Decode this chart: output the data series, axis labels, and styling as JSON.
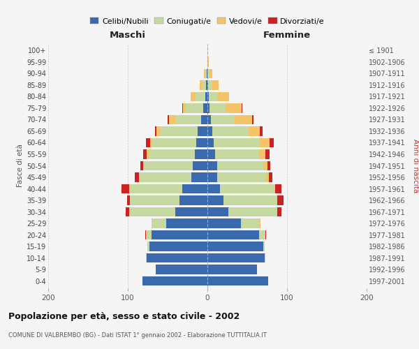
{
  "age_groups": [
    "0-4",
    "5-9",
    "10-14",
    "15-19",
    "20-24",
    "25-29",
    "30-34",
    "35-39",
    "40-44",
    "45-49",
    "50-54",
    "55-59",
    "60-64",
    "65-69",
    "70-74",
    "75-79",
    "80-84",
    "85-89",
    "90-94",
    "95-99",
    "100+"
  ],
  "birth_years": [
    "1997-2001",
    "1992-1996",
    "1987-1991",
    "1982-1986",
    "1977-1981",
    "1972-1976",
    "1967-1971",
    "1962-1966",
    "1957-1961",
    "1952-1956",
    "1947-1951",
    "1942-1946",
    "1937-1941",
    "1932-1936",
    "1927-1931",
    "1922-1926",
    "1917-1921",
    "1912-1916",
    "1907-1911",
    "1902-1906",
    "≤ 1901"
  ],
  "colors": {
    "celibe": "#3a6aad",
    "coniugato": "#c5d9a0",
    "vedovo": "#f5c469",
    "divorziato": "#cc2222"
  },
  "maschi": {
    "celibe": [
      82,
      65,
      76,
      73,
      70,
      52,
      40,
      35,
      32,
      20,
      18,
      16,
      14,
      12,
      8,
      5,
      3,
      2,
      1,
      0,
      0
    ],
    "coniugato": [
      0,
      0,
      1,
      2,
      7,
      18,
      58,
      62,
      66,
      65,
      62,
      58,
      55,
      48,
      32,
      22,
      12,
      5,
      2,
      0,
      0
    ],
    "vedovo": [
      0,
      0,
      0,
      0,
      0,
      0,
      0,
      0,
      0,
      1,
      1,
      2,
      3,
      4,
      8,
      4,
      6,
      3,
      1,
      0,
      0
    ],
    "divorziato": [
      0,
      0,
      0,
      0,
      1,
      0,
      5,
      4,
      10,
      5,
      3,
      5,
      5,
      2,
      2,
      1,
      0,
      0,
      0,
      0,
      0
    ]
  },
  "femmine": {
    "celibe": [
      76,
      62,
      72,
      70,
      65,
      42,
      26,
      20,
      16,
      12,
      12,
      10,
      8,
      6,
      4,
      3,
      2,
      1,
      0,
      0,
      0
    ],
    "coniugato": [
      0,
      0,
      1,
      2,
      8,
      24,
      62,
      68,
      68,
      62,
      58,
      55,
      58,
      46,
      30,
      20,
      10,
      5,
      3,
      1,
      0
    ],
    "vedovo": [
      0,
      0,
      0,
      0,
      0,
      1,
      0,
      0,
      1,
      3,
      5,
      8,
      12,
      14,
      22,
      20,
      15,
      8,
      3,
      1,
      0
    ],
    "divorziato": [
      0,
      0,
      0,
      0,
      1,
      0,
      5,
      8,
      8,
      5,
      4,
      5,
      5,
      3,
      2,
      1,
      0,
      0,
      0,
      0,
      0
    ]
  },
  "title": "Popolazione per età, sesso e stato civile - 2002",
  "subtitle": "COMUNE DI VALBREMBO (BG) - Dati ISTAT 1° gennaio 2002 - Elaborazione TUTTITALIA.IT",
  "xlabel_left": "Maschi",
  "xlabel_right": "Femmine",
  "ylabel_left": "Fasce di età",
  "ylabel_right": "Anni di nascita",
  "xlim": 200,
  "legend_labels": [
    "Celibi/Nubili",
    "Coniugati/e",
    "Vedovi/e",
    "Divorziati/e"
  ],
  "bg_color": "#f5f5f5"
}
